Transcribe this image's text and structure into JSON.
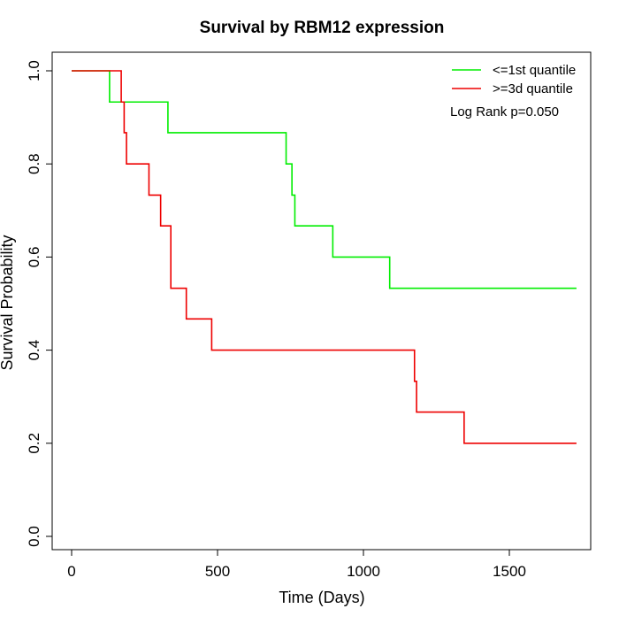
{
  "chart_data": {
    "type": "line",
    "subtype": "kaplan-meier",
    "title": "Survival by RBM12 expression",
    "xlabel": "Time (Days)",
    "ylabel": "Survival Probability",
    "xlim": [
      0,
      1750
    ],
    "ylim": [
      0,
      1
    ],
    "xticks": [
      0,
      500,
      1000,
      1500
    ],
    "xtick_labels": [
      "0",
      "500",
      "1000",
      "1500"
    ],
    "yticks": [
      0,
      0.2,
      0.4,
      0.6,
      0.8,
      1.0
    ],
    "ytick_labels": [
      "0.0",
      "0.2",
      "0.4",
      "0.6",
      "0.8",
      "1.0"
    ],
    "grid": false,
    "legend_position": "top-right",
    "annotation": "Log Rank p=0.050",
    "series": [
      {
        "name": "<=1st quantile",
        "color": "#00ee00",
        "steps": [
          [
            0,
            1.0
          ],
          [
            130,
            0.933
          ],
          [
            330,
            0.867
          ],
          [
            735,
            0.8
          ],
          [
            755,
            0.733
          ],
          [
            765,
            0.667
          ],
          [
            895,
            0.6
          ],
          [
            1090,
            0.533
          ],
          [
            1730,
            0.533
          ]
        ]
      },
      {
        "name": ">=3d quantile",
        "color": "#ee0000",
        "steps": [
          [
            0,
            1.0
          ],
          [
            170,
            0.933
          ],
          [
            180,
            0.867
          ],
          [
            188,
            0.8
          ],
          [
            265,
            0.733
          ],
          [
            305,
            0.667
          ],
          [
            340,
            0.533
          ],
          [
            393,
            0.467
          ],
          [
            480,
            0.4
          ],
          [
            1175,
            0.333
          ],
          [
            1182,
            0.267
          ],
          [
            1345,
            0.2
          ],
          [
            1730,
            0.2
          ]
        ]
      }
    ]
  }
}
